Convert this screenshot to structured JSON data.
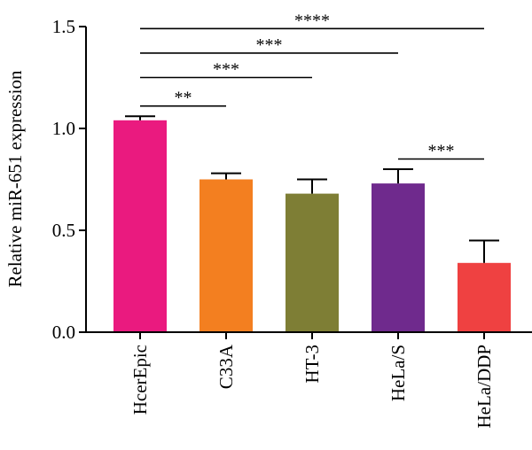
{
  "chart_data": {
    "type": "bar",
    "ylabel": "Relative miR-651 expression",
    "xlabel": "",
    "ylim": [
      0,
      1.5
    ],
    "yticks": [
      "0.0",
      "0.5",
      "1.0",
      "1.5"
    ],
    "categories": [
      "HcerEpic",
      "C33A",
      "HT-3",
      "HeLa/S",
      "HeLa/DDP"
    ],
    "values": [
      1.04,
      0.75,
      0.68,
      0.73,
      0.34
    ],
    "errors": [
      0.02,
      0.03,
      0.07,
      0.07,
      0.11
    ],
    "colors": [
      "#EA1A7F",
      "#F37F20",
      "#7E7E35",
      "#6F2A8D",
      "#EF4141"
    ],
    "significance": [
      {
        "from": 0,
        "to": 1,
        "label": "**",
        "y": 1.11
      },
      {
        "from": 0,
        "to": 2,
        "label": "***",
        "y": 1.25
      },
      {
        "from": 0,
        "to": 3,
        "label": "***",
        "y": 1.37
      },
      {
        "from": 0,
        "to": 4,
        "label": "****",
        "y": 1.49
      },
      {
        "from": 3,
        "to": 4,
        "label": "***",
        "y": 0.85
      }
    ]
  }
}
